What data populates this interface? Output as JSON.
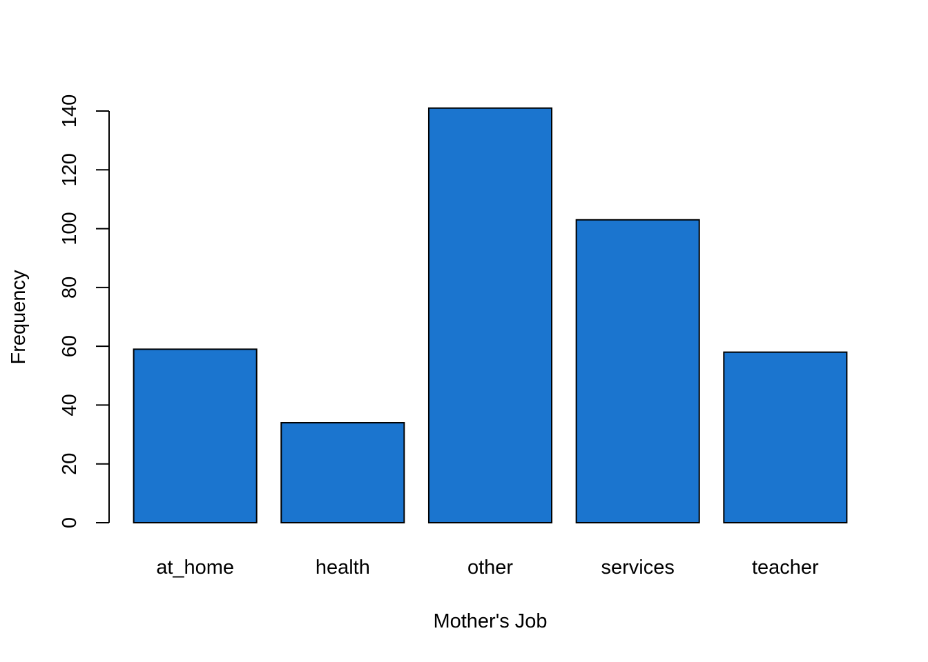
{
  "chart_data": {
    "type": "bar",
    "categories": [
      "at_home",
      "health",
      "other",
      "services",
      "teacher"
    ],
    "values": [
      59,
      34,
      141,
      103,
      58
    ],
    "title": "",
    "xlabel": "Mother's Job",
    "ylabel": "Frequency",
    "ylim": [
      0,
      140
    ],
    "yticks": [
      0,
      20,
      40,
      60,
      80,
      100,
      120,
      140
    ],
    "grid": false,
    "bar_color": "#1b75cf",
    "bar_border_color": "#000000"
  }
}
